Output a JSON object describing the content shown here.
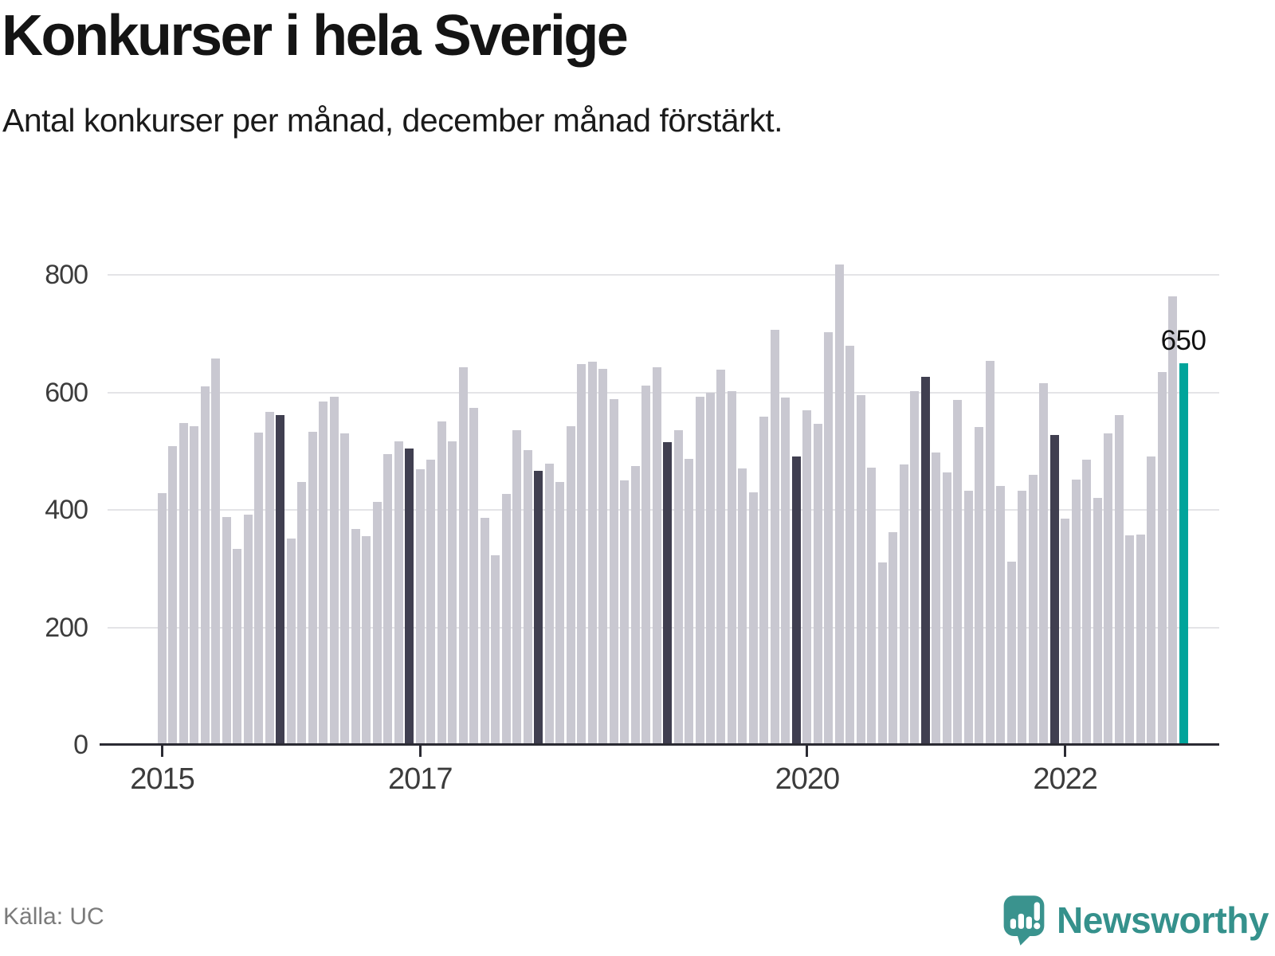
{
  "title": "Konkurser i hela Sverige",
  "subtitle": "Antal konkurser per månad, december månad förstärkt.",
  "source": "Källa: UC",
  "branding": {
    "name": "Newsworthy",
    "icon": "newsworthy-logo-icon"
  },
  "chart_data": {
    "type": "bar",
    "title": "Konkurser i hela Sverige",
    "subtitle": "Antal konkurser per månad, december månad förstärkt.",
    "ylabel": "Antal konkurser",
    "xlabel": "",
    "ylim": [
      0,
      850
    ],
    "yticks": [
      0,
      200,
      400,
      600,
      800
    ],
    "grid": "horizontal",
    "emphasized_months": "december",
    "x": [
      "2015-01",
      "2015-02",
      "2015-03",
      "2015-04",
      "2015-05",
      "2015-06",
      "2015-07",
      "2015-08",
      "2015-09",
      "2015-10",
      "2015-11",
      "2015-12",
      "2016-01",
      "2016-02",
      "2016-03",
      "2016-04",
      "2016-05",
      "2016-06",
      "2016-07",
      "2016-08",
      "2016-09",
      "2016-10",
      "2016-11",
      "2016-12",
      "2017-01",
      "2017-02",
      "2017-03",
      "2017-04",
      "2017-05",
      "2017-06",
      "2017-07",
      "2017-08",
      "2017-09",
      "2017-10",
      "2017-11",
      "2017-12",
      "2018-01",
      "2018-02",
      "2018-03",
      "2018-04",
      "2018-05",
      "2018-06",
      "2018-07",
      "2018-08",
      "2018-09",
      "2018-10",
      "2018-11",
      "2018-12",
      "2019-01",
      "2019-02",
      "2019-03",
      "2019-04",
      "2019-05",
      "2019-06",
      "2019-07",
      "2019-08",
      "2019-09",
      "2019-10",
      "2019-11",
      "2019-12",
      "2020-01",
      "2020-02",
      "2020-03",
      "2020-04",
      "2020-05",
      "2020-06",
      "2020-07",
      "2020-08",
      "2020-09",
      "2020-10",
      "2020-11",
      "2020-12",
      "2021-01",
      "2021-02",
      "2021-03",
      "2021-04",
      "2021-05",
      "2021-06",
      "2021-07",
      "2021-08",
      "2021-09",
      "2021-10",
      "2021-11",
      "2021-12",
      "2022-01",
      "2022-02",
      "2022-03",
      "2022-04",
      "2022-05",
      "2022-06",
      "2022-07",
      "2022-08",
      "2022-09",
      "2022-10",
      "2022-11",
      "2022-12"
    ],
    "values": [
      428,
      508,
      548,
      543,
      610,
      658,
      388,
      334,
      392,
      532,
      567,
      562,
      351,
      448,
      533,
      584,
      592,
      530,
      367,
      355,
      413,
      495,
      517,
      505,
      469,
      485,
      550,
      517,
      643,
      573,
      386,
      323,
      427,
      535,
      502,
      466,
      479,
      448,
      543,
      648,
      652,
      640,
      588,
      450,
      475,
      611,
      643,
      515,
      535,
      487,
      593,
      600,
      638,
      602,
      471,
      430,
      558,
      706,
      591,
      491,
      570,
      546,
      702,
      817,
      680,
      595,
      472,
      310,
      362,
      477,
      602,
      627,
      497,
      464,
      587,
      433,
      541,
      654,
      441,
      312,
      432,
      460,
      615,
      527,
      385,
      452,
      486,
      420,
      530,
      562,
      357,
      358,
      491,
      635,
      763,
      650
    ],
    "xticks": [
      {
        "label": "2015",
        "x": "2015-01"
      },
      {
        "label": "2017",
        "x": "2017-01"
      },
      {
        "label": "2020",
        "x": "2020-01"
      },
      {
        "label": "2022",
        "x": "2022-01"
      }
    ],
    "highlight": {
      "x": "2022-12",
      "value": 650,
      "label": "650"
    },
    "legend": "none",
    "colors": {
      "bar": "#c9c8d1",
      "december": "#403f50",
      "highlight": "#00a49b",
      "gridline": "#e4e4e7",
      "axis": "#2b2b33"
    }
  }
}
